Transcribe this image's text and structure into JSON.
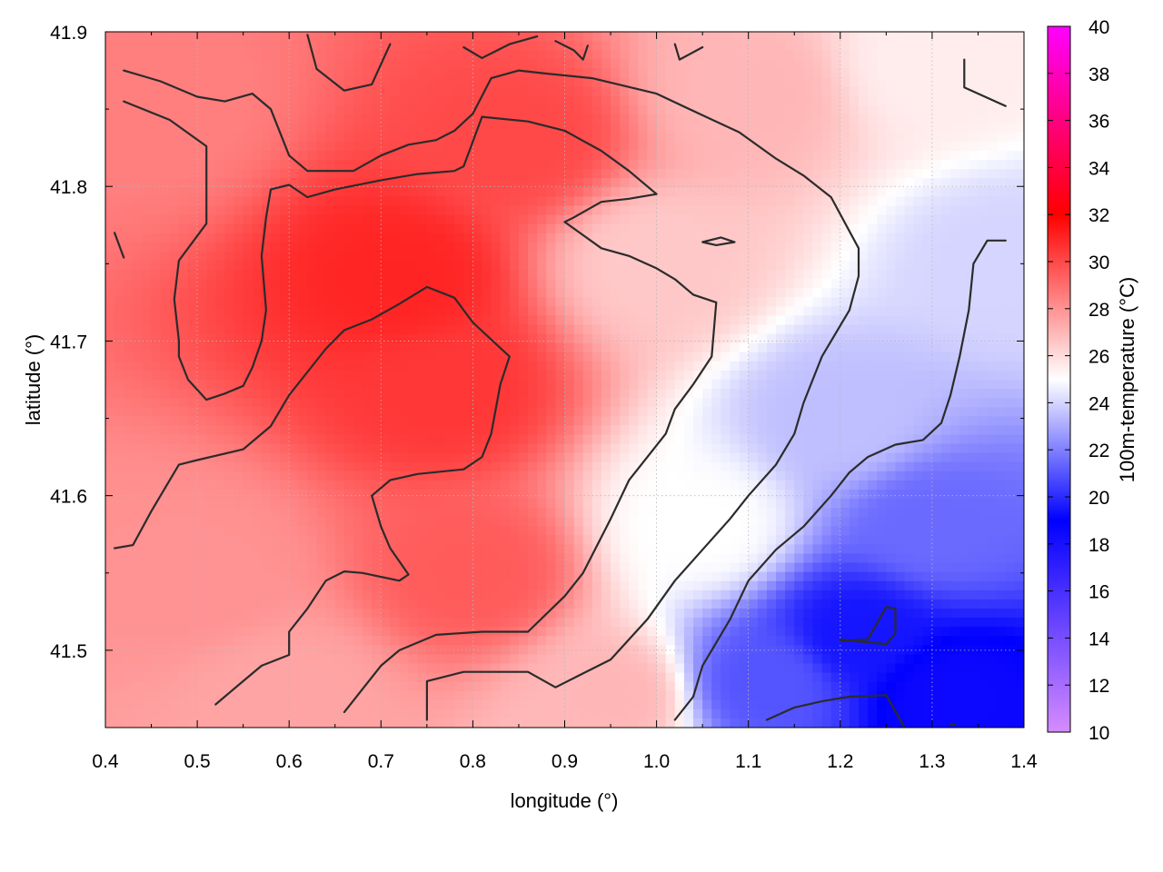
{
  "chart_data": {
    "type": "heatmap",
    "title": "",
    "xlabel": "longitude (°)",
    "ylabel": "latitude (°)",
    "xlim": [
      0.4,
      1.4
    ],
    "ylim": [
      41.45,
      41.9
    ],
    "x_ticks": [
      "0.4",
      "0.5",
      "0.6",
      "0.7",
      "0.8",
      "0.9",
      "1.0",
      "1.1",
      "1.2",
      "1.3",
      "1.4"
    ],
    "y_ticks": [
      "41.5",
      "41.6",
      "41.7",
      "41.8",
      "41.9"
    ],
    "grid": true,
    "colorbar": {
      "label": "100m-temperature (°C)",
      "range": [
        10,
        40
      ],
      "ticks": [
        "10",
        "12",
        "14",
        "16",
        "18",
        "20",
        "22",
        "24",
        "26",
        "28",
        "30",
        "32",
        "34",
        "36",
        "38",
        "40"
      ],
      "colors": [
        "#d68cff",
        "#0000ff",
        "#ffffff",
        "#ff0000",
        "#ff00ff"
      ]
    },
    "field_samples": [
      {
        "lon": 0.45,
        "lat": 41.85,
        "temp": 28.5
      },
      {
        "lon": 0.72,
        "lat": 41.74,
        "temp": 31.0
      },
      {
        "lon": 0.77,
        "lat": 41.67,
        "temp": 30.5
      },
      {
        "lon": 0.85,
        "lat": 41.83,
        "temp": 30.0
      },
      {
        "lon": 0.8,
        "lat": 41.55,
        "temp": 29.5
      },
      {
        "lon": 0.5,
        "lat": 41.55,
        "temp": 28.0
      },
      {
        "lon": 1.0,
        "lat": 41.75,
        "temp": 26.5
      },
      {
        "lon": 1.1,
        "lat": 41.86,
        "temp": 27.0
      },
      {
        "lon": 1.3,
        "lat": 41.88,
        "temp": 25.5
      },
      {
        "lon": 1.05,
        "lat": 41.58,
        "temp": 25.0
      },
      {
        "lon": 1.2,
        "lat": 41.65,
        "temp": 23.5
      },
      {
        "lon": 1.3,
        "lat": 41.58,
        "temp": 21.5
      },
      {
        "lon": 1.22,
        "lat": 41.51,
        "temp": 19.5
      },
      {
        "lon": 1.12,
        "lat": 41.48,
        "temp": 21.0
      },
      {
        "lon": 1.32,
        "lat": 41.47,
        "temp": 18.5
      },
      {
        "lon": 1.38,
        "lat": 41.75,
        "temp": 24.0
      },
      {
        "lon": 0.95,
        "lat": 41.47,
        "temp": 27.0
      },
      {
        "lon": 0.6,
        "lat": 41.47,
        "temp": 27.5
      }
    ],
    "contours": [
      {
        "level": 26,
        "points": [
          [
            1.02,
            41.455
          ],
          [
            1.04,
            41.47
          ],
          [
            1.05,
            41.49
          ],
          [
            1.06,
            41.5
          ],
          [
            1.08,
            41.52
          ],
          [
            1.1,
            41.545
          ],
          [
            1.13,
            41.565
          ],
          [
            1.16,
            41.58
          ],
          [
            1.19,
            41.6
          ],
          [
            1.21,
            41.615
          ],
          [
            1.23,
            41.625
          ],
          [
            1.26,
            41.633
          ],
          [
            1.29,
            41.636
          ],
          [
            1.31,
            41.647
          ],
          [
            1.32,
            41.665
          ],
          [
            1.33,
            41.69
          ],
          [
            1.34,
            41.72
          ],
          [
            1.345,
            41.75
          ],
          [
            1.36,
            41.765
          ],
          [
            1.38,
            41.765
          ]
        ]
      },
      {
        "level": 26,
        "points": [
          [
            1.12,
            41.455
          ],
          [
            1.15,
            41.463
          ],
          [
            1.18,
            41.467
          ],
          [
            1.21,
            41.47
          ],
          [
            1.25,
            41.471
          ],
          [
            1.27,
            41.45
          ]
        ]
      },
      {
        "level": 26,
        "points": [
          [
            1.2,
            41.507
          ],
          [
            1.25,
            41.504
          ],
          [
            1.26,
            41.511
          ],
          [
            1.26,
            41.527
          ],
          [
            1.25,
            41.528
          ],
          [
            1.23,
            41.507
          ],
          [
            1.2,
            41.506
          ]
        ]
      },
      {
        "level": 28,
        "points": [
          [
            0.75,
            41.455
          ],
          [
            0.75,
            41.48
          ],
          [
            0.79,
            41.486
          ],
          [
            0.86,
            41.486
          ],
          [
            0.89,
            41.476
          ],
          [
            0.92,
            41.485
          ],
          [
            0.95,
            41.494
          ],
          [
            0.99,
            41.52
          ],
          [
            1.02,
            41.545
          ],
          [
            1.05,
            41.565
          ],
          [
            1.08,
            41.585
          ],
          [
            1.1,
            41.6
          ],
          [
            1.13,
            41.62
          ],
          [
            1.15,
            41.64
          ],
          [
            1.16,
            41.66
          ],
          [
            1.18,
            41.69
          ],
          [
            1.21,
            41.72
          ],
          [
            1.22,
            41.742
          ],
          [
            1.22,
            41.76
          ],
          [
            1.19,
            41.793
          ],
          [
            1.16,
            41.807
          ],
          [
            1.13,
            41.818
          ],
          [
            1.09,
            41.835
          ],
          [
            1.05,
            41.846
          ],
          [
            1.0,
            41.86
          ],
          [
            0.93,
            41.87
          ],
          [
            0.88,
            41.873
          ],
          [
            0.85,
            41.875
          ],
          [
            0.82,
            41.87
          ],
          [
            0.8,
            41.847
          ],
          [
            0.78,
            41.836
          ],
          [
            0.76,
            41.83
          ],
          [
            0.73,
            41.827
          ],
          [
            0.7,
            41.82
          ],
          [
            0.67,
            41.81
          ],
          [
            0.62,
            41.81
          ],
          [
            0.6,
            41.82
          ],
          [
            0.58,
            41.85
          ],
          [
            0.56,
            41.86
          ],
          [
            0.53,
            41.855
          ],
          [
            0.5,
            41.858
          ],
          [
            0.46,
            41.868
          ],
          [
            0.42,
            41.875
          ]
        ]
      },
      {
        "level": 30,
        "points": [
          [
            0.66,
            41.46
          ],
          [
            0.7,
            41.49
          ],
          [
            0.72,
            41.5
          ],
          [
            0.76,
            41.51
          ],
          [
            0.81,
            41.512
          ],
          [
            0.86,
            41.512
          ],
          [
            0.9,
            41.535
          ],
          [
            0.92,
            41.55
          ],
          [
            0.95,
            41.585
          ],
          [
            0.97,
            41.61
          ],
          [
            1.01,
            41.64
          ],
          [
            1.02,
            41.656
          ],
          [
            1.04,
            41.672
          ],
          [
            1.06,
            41.69
          ],
          [
            1.065,
            41.725
          ],
          [
            1.04,
            41.73
          ],
          [
            1.02,
            41.74
          ],
          [
            1.0,
            41.747
          ],
          [
            0.97,
            41.755
          ],
          [
            0.94,
            41.76
          ],
          [
            0.9,
            41.777
          ],
          [
            0.91,
            41.78
          ],
          [
            0.94,
            41.79
          ],
          [
            0.97,
            41.792
          ],
          [
            1.0,
            41.795
          ],
          [
            0.97,
            41.81
          ],
          [
            0.94,
            41.823
          ],
          [
            0.9,
            41.836
          ],
          [
            0.86,
            41.842
          ],
          [
            0.81,
            41.845
          ],
          [
            0.79,
            41.813
          ],
          [
            0.78,
            41.81
          ],
          [
            0.74,
            41.808
          ],
          [
            0.7,
            41.804
          ],
          [
            0.65,
            41.798
          ],
          [
            0.62,
            41.793
          ],
          [
            0.6,
            41.801
          ],
          [
            0.58,
            41.798
          ],
          [
            0.575,
            41.78
          ],
          [
            0.57,
            41.755
          ],
          [
            0.575,
            41.72
          ],
          [
            0.57,
            41.7
          ],
          [
            0.56,
            41.683
          ],
          [
            0.55,
            41.671
          ],
          [
            0.53,
            41.666
          ],
          [
            0.51,
            41.662
          ],
          [
            0.49,
            41.675
          ],
          [
            0.48,
            41.69
          ],
          [
            0.48,
            41.7
          ],
          [
            0.475,
            41.727
          ],
          [
            0.48,
            41.752
          ],
          [
            0.51,
            41.776
          ],
          [
            0.51,
            41.8
          ],
          [
            0.51,
            41.826
          ],
          [
            0.47,
            41.843
          ],
          [
            0.42,
            41.855
          ]
        ]
      },
      {
        "level": 30,
        "points": [
          [
            0.42,
            41.754
          ],
          [
            0.41,
            41.77
          ]
        ]
      },
      {
        "level": 30,
        "points": [
          [
            0.41,
            41.566
          ],
          [
            0.43,
            41.568
          ],
          [
            0.45,
            41.59
          ],
          [
            0.48,
            41.62
          ],
          [
            0.5,
            41.623
          ],
          [
            0.55,
            41.63
          ],
          [
            0.58,
            41.645
          ],
          [
            0.6,
            41.665
          ],
          [
            0.64,
            41.695
          ],
          [
            0.66,
            41.707
          ],
          [
            0.69,
            41.714
          ],
          [
            0.72,
            41.724
          ],
          [
            0.75,
            41.735
          ],
          [
            0.78,
            41.728
          ],
          [
            0.8,
            41.712
          ],
          [
            0.84,
            41.69
          ],
          [
            0.83,
            41.672
          ],
          [
            0.82,
            41.64
          ],
          [
            0.81,
            41.625
          ],
          [
            0.79,
            41.617
          ],
          [
            0.74,
            41.614
          ],
          [
            0.71,
            41.61
          ],
          [
            0.69,
            41.6
          ],
          [
            0.7,
            41.58
          ],
          [
            0.71,
            41.566
          ],
          [
            0.73,
            41.549
          ],
          [
            0.72,
            41.545
          ],
          [
            0.68,
            41.55
          ],
          [
            0.66,
            41.551
          ],
          [
            0.64,
            41.545
          ],
          [
            0.62,
            41.527
          ],
          [
            0.6,
            41.512
          ],
          [
            0.6,
            41.497
          ],
          [
            0.57,
            41.49
          ],
          [
            0.54,
            41.475
          ],
          [
            0.52,
            41.465
          ]
        ]
      },
      {
        "level": 28,
        "points": [
          [
            0.62,
            41.898
          ],
          [
            0.63,
            41.876
          ],
          [
            0.66,
            41.862
          ],
          [
            0.69,
            41.866
          ],
          [
            0.71,
            41.892
          ]
        ]
      },
      {
        "level": 28,
        "points": [
          [
            0.79,
            41.89
          ],
          [
            0.81,
            41.883
          ],
          [
            0.84,
            41.892
          ],
          [
            0.87,
            41.897
          ]
        ]
      },
      {
        "level": 28,
        "points": [
          [
            0.89,
            41.894
          ],
          [
            0.91,
            41.888
          ],
          [
            0.92,
            41.882
          ],
          [
            0.925,
            41.891
          ]
        ]
      },
      {
        "level": 28,
        "points": [
          [
            1.02,
            41.892
          ],
          [
            1.025,
            41.882
          ],
          [
            1.05,
            41.89
          ]
        ]
      },
      {
        "level": 26,
        "points": [
          [
            1.335,
            41.882
          ],
          [
            1.335,
            41.864
          ],
          [
            1.38,
            41.852
          ]
        ]
      },
      {
        "level": 28,
        "points": [
          [
            1.05,
            41.764
          ],
          [
            1.07,
            41.767
          ],
          [
            1.085,
            41.764
          ],
          [
            1.065,
            41.762
          ],
          [
            1.05,
            41.764
          ]
        ]
      },
      {
        "level": 24,
        "points": [
          [
            1.32,
            41.452
          ],
          [
            1.325,
            41.452
          ]
        ]
      }
    ]
  }
}
